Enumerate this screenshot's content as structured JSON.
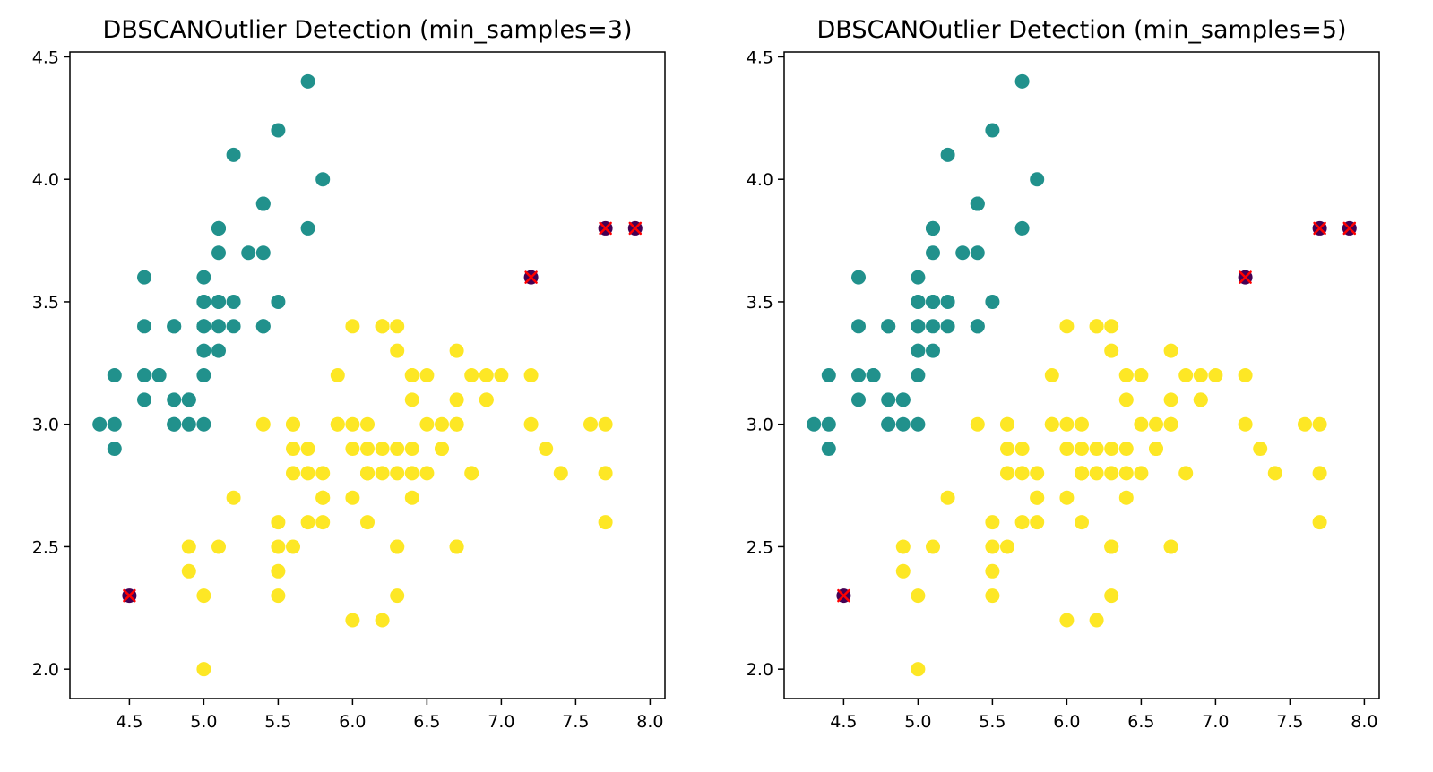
{
  "colors": {
    "cluster": "#21918c",
    "other": "#fde725",
    "noise": "#440154",
    "outlier_marker": "#ff0000",
    "axis": "#000000"
  },
  "chart_data": [
    {
      "type": "scatter",
      "title": "DBSCANOutlier Detection (min_samples=3)",
      "xlabel": "",
      "ylabel": "",
      "xlim": [
        4.1,
        8.1
      ],
      "ylim": [
        1.88,
        4.52
      ],
      "xticks": [
        "4.5",
        "5.0",
        "5.5",
        "6.0",
        "6.5",
        "7.0",
        "7.5",
        "8.0"
      ],
      "yticks": [
        "2.0",
        "2.5",
        "3.0",
        "3.5",
        "4.0",
        "4.5"
      ],
      "grid": false,
      "series": [
        {
          "label_id": 0,
          "color": "#21918c",
          "points": [
            [
              5.1,
              3.5
            ],
            [
              4.9,
              3.0
            ],
            [
              4.7,
              3.2
            ],
            [
              4.6,
              3.1
            ],
            [
              5.0,
              3.6
            ],
            [
              5.4,
              3.9
            ],
            [
              4.6,
              3.4
            ],
            [
              5.0,
              3.4
            ],
            [
              4.4,
              2.9
            ],
            [
              4.9,
              3.1
            ],
            [
              5.4,
              3.7
            ],
            [
              4.8,
              3.4
            ],
            [
              4.8,
              3.0
            ],
            [
              4.3,
              3.0
            ],
            [
              5.8,
              4.0
            ],
            [
              5.7,
              4.4
            ],
            [
              5.4,
              3.9
            ],
            [
              5.1,
              3.5
            ],
            [
              5.7,
              3.8
            ],
            [
              5.1,
              3.8
            ],
            [
              5.4,
              3.4
            ],
            [
              5.1,
              3.7
            ],
            [
              4.6,
              3.6
            ],
            [
              5.1,
              3.3
            ],
            [
              4.8,
              3.4
            ],
            [
              5.0,
              3.0
            ],
            [
              5.0,
              3.4
            ],
            [
              5.2,
              3.5
            ],
            [
              5.2,
              3.4
            ],
            [
              4.7,
              3.2
            ],
            [
              4.8,
              3.1
            ],
            [
              5.4,
              3.4
            ],
            [
              5.2,
              4.1
            ],
            [
              5.5,
              4.2
            ],
            [
              4.9,
              3.1
            ],
            [
              5.0,
              3.2
            ],
            [
              5.5,
              3.5
            ],
            [
              4.4,
              3.0
            ],
            [
              5.1,
              3.4
            ],
            [
              5.0,
              3.5
            ],
            [
              4.4,
              3.2
            ],
            [
              5.0,
              3.5
            ],
            [
              5.1,
              3.8
            ],
            [
              4.8,
              3.0
            ],
            [
              5.1,
              3.8
            ],
            [
              4.6,
              3.2
            ],
            [
              5.3,
              3.7
            ],
            [
              5.0,
              3.3
            ]
          ]
        },
        {
          "label_id": 1,
          "color": "#fde725",
          "points": [
            [
              7.0,
              3.2
            ],
            [
              6.4,
              3.2
            ],
            [
              6.9,
              3.1
            ],
            [
              5.5,
              2.3
            ],
            [
              6.5,
              2.8
            ],
            [
              5.7,
              2.8
            ],
            [
              6.3,
              3.3
            ],
            [
              4.9,
              2.4
            ],
            [
              6.6,
              2.9
            ],
            [
              5.2,
              2.7
            ],
            [
              5.0,
              2.0
            ],
            [
              5.9,
              3.0
            ],
            [
              6.0,
              2.2
            ],
            [
              6.1,
              2.9
            ],
            [
              5.6,
              2.9
            ],
            [
              6.7,
              3.1
            ],
            [
              5.6,
              3.0
            ],
            [
              5.8,
              2.7
            ],
            [
              6.2,
              2.2
            ],
            [
              5.6,
              2.5
            ],
            [
              5.9,
              3.2
            ],
            [
              6.1,
              2.8
            ],
            [
              6.3,
              2.5
            ],
            [
              6.4,
              2.9
            ],
            [
              6.6,
              3.0
            ],
            [
              6.8,
              2.8
            ],
            [
              6.7,
              3.0
            ],
            [
              6.0,
              2.9
            ],
            [
              5.7,
              2.6
            ],
            [
              5.5,
              2.4
            ],
            [
              5.8,
              2.7
            ],
            [
              5.4,
              3.0
            ],
            [
              6.0,
              3.4
            ],
            [
              6.3,
              2.3
            ],
            [
              5.5,
              2.5
            ],
            [
              5.5,
              2.6
            ],
            [
              6.1,
              3.0
            ],
            [
              5.0,
              2.3
            ],
            [
              5.7,
              2.9
            ],
            [
              6.2,
              2.9
            ],
            [
              5.1,
              2.5
            ],
            [
              6.3,
              2.9
            ],
            [
              6.5,
              3.0
            ],
            [
              7.6,
              3.0
            ],
            [
              4.9,
              2.5
            ],
            [
              7.3,
              2.9
            ],
            [
              6.7,
              2.5
            ],
            [
              6.5,
              3.2
            ],
            [
              6.4,
              2.7
            ],
            [
              6.4,
              3.1
            ],
            [
              7.7,
              2.6
            ],
            [
              6.9,
              3.2
            ],
            [
              5.6,
              2.8
            ],
            [
              7.7,
              2.8
            ],
            [
              6.7,
              3.3
            ],
            [
              7.2,
              3.2
            ],
            [
              6.2,
              2.8
            ],
            [
              7.2,
              3.0
            ],
            [
              7.4,
              2.8
            ],
            [
              6.3,
              2.8
            ],
            [
              6.1,
              2.6
            ],
            [
              7.7,
              3.0
            ],
            [
              6.3,
              3.4
            ],
            [
              6.0,
              3.0
            ],
            [
              6.9,
              3.1
            ],
            [
              5.8,
              2.8
            ],
            [
              6.8,
              3.2
            ],
            [
              6.7,
              3.0
            ],
            [
              6.3,
              2.5
            ],
            [
              6.2,
              3.4
            ],
            [
              5.9,
              3.0
            ],
            [
              6.6,
              2.9
            ],
            [
              6.0,
              2.7
            ],
            [
              6.1,
              2.8
            ],
            [
              5.8,
              2.6
            ],
            [
              6.4,
              2.8
            ],
            [
              6.2,
              3.4
            ],
            [
              6.4,
              3.2
            ],
            [
              6.7,
              2.5
            ],
            [
              6.1,
              2.8
            ],
            [
              5.6,
              3.0
            ]
          ]
        },
        {
          "label_id": -1,
          "color": "#440154",
          "points": [
            [
              4.5,
              2.3
            ],
            [
              7.2,
              3.6
            ],
            [
              7.7,
              3.8
            ],
            [
              7.9,
              3.8
            ]
          ]
        }
      ],
      "outliers": [
        [
          4.5,
          2.3
        ],
        [
          7.2,
          3.6
        ],
        [
          7.7,
          3.8
        ],
        [
          7.9,
          3.8
        ]
      ]
    },
    {
      "type": "scatter",
      "title": "DBSCANOutlier Detection (min_samples=5)",
      "xlabel": "",
      "ylabel": "",
      "xlim": [
        4.1,
        8.1
      ],
      "ylim": [
        1.88,
        4.52
      ],
      "xticks": [
        "4.5",
        "5.0",
        "5.5",
        "6.0",
        "6.5",
        "7.0",
        "7.5",
        "8.0"
      ],
      "yticks": [
        "2.0",
        "2.5",
        "3.0",
        "3.5",
        "4.0",
        "4.5"
      ],
      "grid": false,
      "series": [
        {
          "label_id": 0,
          "color": "#21918c",
          "points": [
            [
              5.1,
              3.5
            ],
            [
              4.9,
              3.0
            ],
            [
              4.7,
              3.2
            ],
            [
              4.6,
              3.1
            ],
            [
              5.0,
              3.6
            ],
            [
              5.4,
              3.9
            ],
            [
              4.6,
              3.4
            ],
            [
              5.0,
              3.4
            ],
            [
              4.4,
              2.9
            ],
            [
              4.9,
              3.1
            ],
            [
              5.4,
              3.7
            ],
            [
              4.8,
              3.4
            ],
            [
              4.8,
              3.0
            ],
            [
              4.3,
              3.0
            ],
            [
              5.8,
              4.0
            ],
            [
              5.7,
              4.4
            ],
            [
              5.4,
              3.9
            ],
            [
              5.1,
              3.5
            ],
            [
              5.7,
              3.8
            ],
            [
              5.1,
              3.8
            ],
            [
              5.4,
              3.4
            ],
            [
              5.1,
              3.7
            ],
            [
              4.6,
              3.6
            ],
            [
              5.1,
              3.3
            ],
            [
              4.8,
              3.4
            ],
            [
              5.0,
              3.0
            ],
            [
              5.0,
              3.4
            ],
            [
              5.2,
              3.5
            ],
            [
              5.2,
              3.4
            ],
            [
              4.7,
              3.2
            ],
            [
              4.8,
              3.1
            ],
            [
              5.4,
              3.4
            ],
            [
              5.2,
              4.1
            ],
            [
              5.5,
              4.2
            ],
            [
              4.9,
              3.1
            ],
            [
              5.0,
              3.2
            ],
            [
              5.5,
              3.5
            ],
            [
              4.4,
              3.0
            ],
            [
              5.1,
              3.4
            ],
            [
              5.0,
              3.5
            ],
            [
              4.4,
              3.2
            ],
            [
              5.0,
              3.5
            ],
            [
              5.1,
              3.8
            ],
            [
              4.8,
              3.0
            ],
            [
              5.1,
              3.8
            ],
            [
              4.6,
              3.2
            ],
            [
              5.3,
              3.7
            ],
            [
              5.0,
              3.3
            ]
          ]
        },
        {
          "label_id": 1,
          "color": "#fde725",
          "points": [
            [
              7.0,
              3.2
            ],
            [
              6.4,
              3.2
            ],
            [
              6.9,
              3.1
            ],
            [
              5.5,
              2.3
            ],
            [
              6.5,
              2.8
            ],
            [
              5.7,
              2.8
            ],
            [
              6.3,
              3.3
            ],
            [
              4.9,
              2.4
            ],
            [
              6.6,
              2.9
            ],
            [
              5.2,
              2.7
            ],
            [
              5.0,
              2.0
            ],
            [
              5.9,
              3.0
            ],
            [
              6.0,
              2.2
            ],
            [
              6.1,
              2.9
            ],
            [
              5.6,
              2.9
            ],
            [
              6.7,
              3.1
            ],
            [
              5.6,
              3.0
            ],
            [
              5.8,
              2.7
            ],
            [
              6.2,
              2.2
            ],
            [
              5.6,
              2.5
            ],
            [
              5.9,
              3.2
            ],
            [
              6.1,
              2.8
            ],
            [
              6.3,
              2.5
            ],
            [
              6.4,
              2.9
            ],
            [
              6.6,
              3.0
            ],
            [
              6.8,
              2.8
            ],
            [
              6.7,
              3.0
            ],
            [
              6.0,
              2.9
            ],
            [
              5.7,
              2.6
            ],
            [
              5.5,
              2.4
            ],
            [
              5.8,
              2.7
            ],
            [
              5.4,
              3.0
            ],
            [
              6.0,
              3.4
            ],
            [
              6.3,
              2.3
            ],
            [
              5.5,
              2.5
            ],
            [
              5.5,
              2.6
            ],
            [
              6.1,
              3.0
            ],
            [
              5.0,
              2.3
            ],
            [
              5.7,
              2.9
            ],
            [
              6.2,
              2.9
            ],
            [
              5.1,
              2.5
            ],
            [
              6.3,
              2.9
            ],
            [
              6.5,
              3.0
            ],
            [
              7.6,
              3.0
            ],
            [
              4.9,
              2.5
            ],
            [
              7.3,
              2.9
            ],
            [
              6.7,
              2.5
            ],
            [
              6.5,
              3.2
            ],
            [
              6.4,
              2.7
            ],
            [
              6.4,
              3.1
            ],
            [
              7.7,
              2.6
            ],
            [
              6.9,
              3.2
            ],
            [
              5.6,
              2.8
            ],
            [
              7.7,
              2.8
            ],
            [
              6.7,
              3.3
            ],
            [
              7.2,
              3.2
            ],
            [
              6.2,
              2.8
            ],
            [
              7.2,
              3.0
            ],
            [
              7.4,
              2.8
            ],
            [
              6.3,
              2.8
            ],
            [
              6.1,
              2.6
            ],
            [
              7.7,
              3.0
            ],
            [
              6.3,
              3.4
            ],
            [
              6.0,
              3.0
            ],
            [
              6.9,
              3.1
            ],
            [
              5.8,
              2.8
            ],
            [
              6.8,
              3.2
            ],
            [
              6.7,
              3.0
            ],
            [
              6.3,
              2.5
            ],
            [
              6.2,
              3.4
            ],
            [
              5.9,
              3.0
            ],
            [
              6.6,
              2.9
            ],
            [
              6.0,
              2.7
            ],
            [
              6.1,
              2.8
            ],
            [
              5.8,
              2.6
            ],
            [
              6.4,
              2.8
            ],
            [
              6.2,
              3.4
            ],
            [
              6.4,
              3.2
            ],
            [
              6.7,
              2.5
            ],
            [
              6.1,
              2.8
            ],
            [
              5.6,
              3.0
            ]
          ]
        },
        {
          "label_id": -1,
          "color": "#440154",
          "points": [
            [
              4.5,
              2.3
            ],
            [
              7.2,
              3.6
            ],
            [
              7.7,
              3.8
            ],
            [
              7.9,
              3.8
            ]
          ]
        }
      ],
      "outliers": [
        [
          4.5,
          2.3
        ],
        [
          7.2,
          3.6
        ],
        [
          7.7,
          3.8
        ],
        [
          7.9,
          3.8
        ]
      ]
    }
  ]
}
